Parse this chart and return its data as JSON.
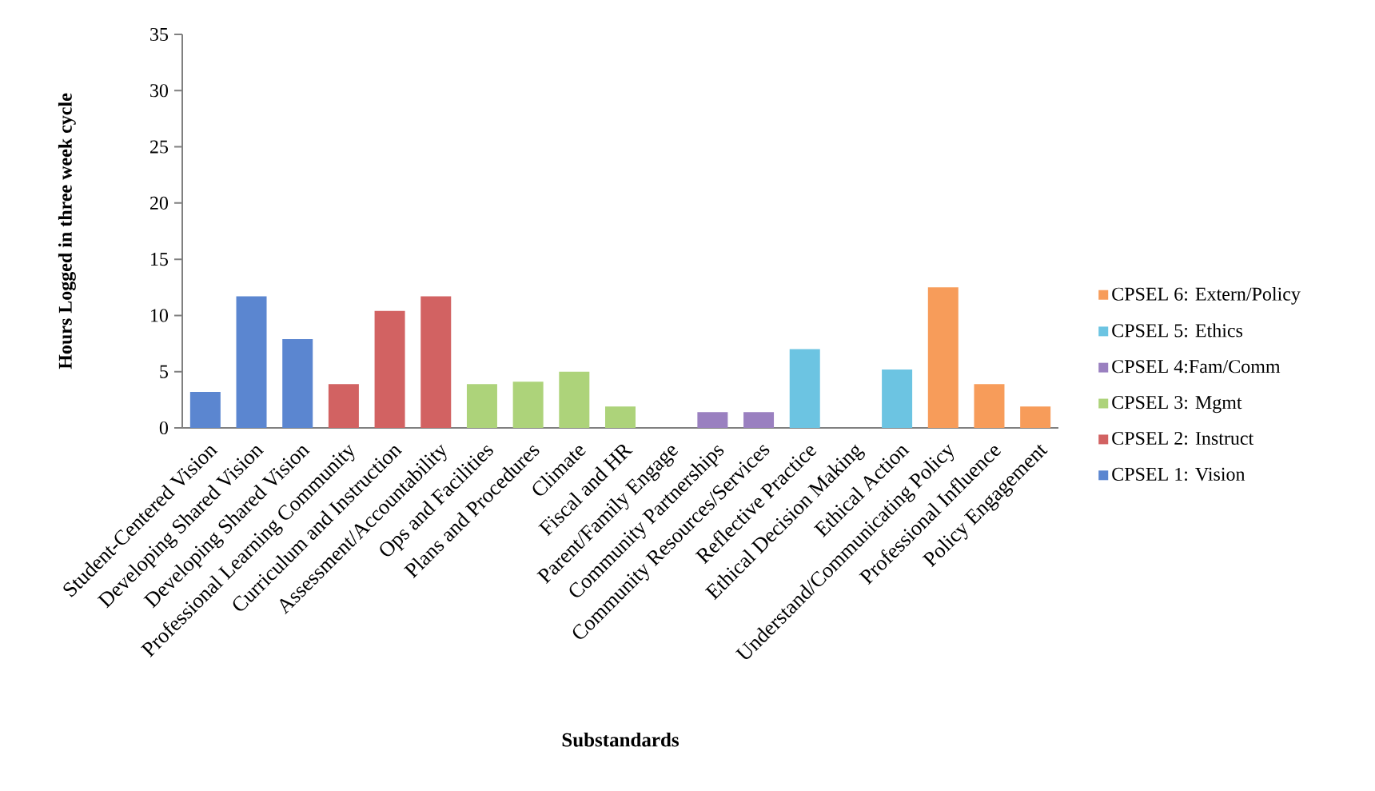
{
  "chart_data": {
    "type": "bar",
    "stacked": true,
    "xlabel": "Substandards",
    "ylabel": "Hours Logged in three week cycle",
    "categories": [
      "Student-Centered Vision",
      "Developing Shared Vision",
      "Developing Shared Vision",
      "Professional Learning Community",
      "Curriculum and Instruction",
      "Assessment/Accountability",
      "Ops and Facilities",
      "Plans and Procedures",
      "Climate",
      "Fiscal and HR",
      "Parent/Family Engage",
      "Community Partnerships",
      "Community Resources/Services",
      "Reflective Practice",
      "Ethical Decision Making",
      "Ethical Action",
      "Understand/Communicating Policy",
      "Professional Influence",
      "Policy Engagement"
    ],
    "series": [
      {
        "name": "CPSEL 1: Vision",
        "color": "#5b86d0",
        "values": [
          3.2,
          11.7,
          7.9,
          null,
          null,
          null,
          null,
          null,
          null,
          null,
          null,
          null,
          null,
          null,
          null,
          null,
          null,
          null,
          null
        ]
      },
      {
        "name": "CPSEL 2: Instruct",
        "color": "#d26262",
        "values": [
          null,
          null,
          null,
          3.9,
          10.4,
          11.7,
          null,
          null,
          null,
          null,
          null,
          null,
          null,
          null,
          null,
          null,
          null,
          null,
          null
        ]
      },
      {
        "name": "CPSEL 3: Mgmt",
        "color": "#add37a",
        "values": [
          null,
          null,
          null,
          null,
          null,
          null,
          3.9,
          4.1,
          5.0,
          1.9,
          null,
          null,
          null,
          null,
          null,
          null,
          null,
          null,
          null
        ]
      },
      {
        "name": "CPSEL 4:Fam/Comm",
        "color": "#9a80c0",
        "values": [
          null,
          null,
          null,
          null,
          null,
          null,
          null,
          null,
          null,
          null,
          null,
          1.4,
          1.4,
          null,
          null,
          null,
          null,
          null,
          null
        ]
      },
      {
        "name": "CPSEL 5: Ethics",
        "color": "#6cc4e2",
        "values": [
          null,
          null,
          null,
          null,
          null,
          null,
          null,
          null,
          null,
          null,
          null,
          null,
          null,
          7.0,
          null,
          5.2,
          null,
          null,
          null
        ]
      },
      {
        "name": "CPSEL 6: Extern/Policy",
        "color": "#f79c5a",
        "values": [
          null,
          null,
          null,
          null,
          null,
          null,
          null,
          null,
          null,
          null,
          null,
          null,
          null,
          null,
          null,
          null,
          12.5,
          3.9,
          1.9
        ]
      }
    ],
    "ylim": [
      0,
      35
    ],
    "yticks": [
      0,
      5,
      10,
      15,
      20,
      25,
      30,
      35
    ],
    "legend": "right",
    "grid": false
  }
}
